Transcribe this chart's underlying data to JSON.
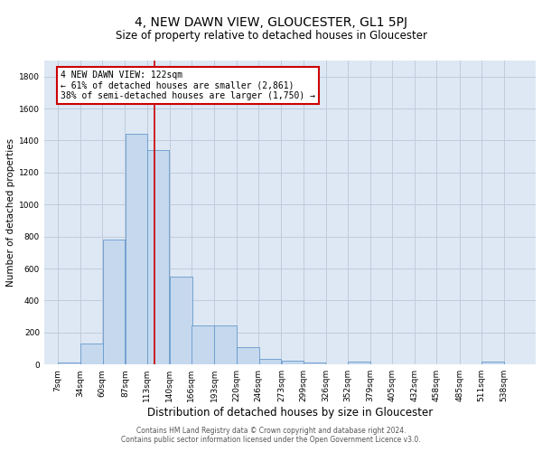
{
  "title": "4, NEW DAWN VIEW, GLOUCESTER, GL1 5PJ",
  "subtitle": "Size of property relative to detached houses in Gloucester",
  "xlabel": "Distribution of detached houses by size in Gloucester",
  "ylabel": "Number of detached properties",
  "footnote1": "Contains HM Land Registry data © Crown copyright and database right 2024.",
  "footnote2": "Contains public sector information licensed under the Open Government Licence v3.0.",
  "bar_color": "#c5d8ee",
  "bar_edge_color": "#6699cc",
  "background_color": "#dde8f4",
  "grid_color": "#c0ccdb",
  "bin_labels": [
    "7sqm",
    "34sqm",
    "60sqm",
    "87sqm",
    "113sqm",
    "140sqm",
    "166sqm",
    "193sqm",
    "220sqm",
    "246sqm",
    "273sqm",
    "299sqm",
    "326sqm",
    "352sqm",
    "379sqm",
    "405sqm",
    "432sqm",
    "458sqm",
    "485sqm",
    "511sqm",
    "538sqm"
  ],
  "bin_edges": [
    7,
    34,
    60,
    87,
    113,
    140,
    166,
    193,
    220,
    246,
    273,
    299,
    326,
    352,
    379,
    405,
    432,
    458,
    485,
    511,
    538
  ],
  "bar_heights": [
    15,
    130,
    780,
    1440,
    1340,
    550,
    245,
    245,
    110,
    35,
    25,
    10,
    0,
    20,
    0,
    0,
    0,
    0,
    0,
    20,
    0
  ],
  "red_line_x": 122,
  "annotation_title": "4 NEW DAWN VIEW: 122sqm",
  "annotation_line1": "← 61% of detached houses are smaller (2,861)",
  "annotation_line2": "38% of semi-detached houses are larger (1,750) →",
  "annotation_box_color": "#ffffff",
  "annotation_box_edge": "#cc0000",
  "red_line_color": "#cc0000",
  "ylim": [
    0,
    1900
  ],
  "yticks": [
    0,
    200,
    400,
    600,
    800,
    1000,
    1200,
    1400,
    1600,
    1800
  ],
  "title_fontsize": 10,
  "subtitle_fontsize": 8.5,
  "ylabel_fontsize": 7.5,
  "xlabel_fontsize": 8.5,
  "tick_fontsize": 6.5,
  "footnote_fontsize": 5.5
}
